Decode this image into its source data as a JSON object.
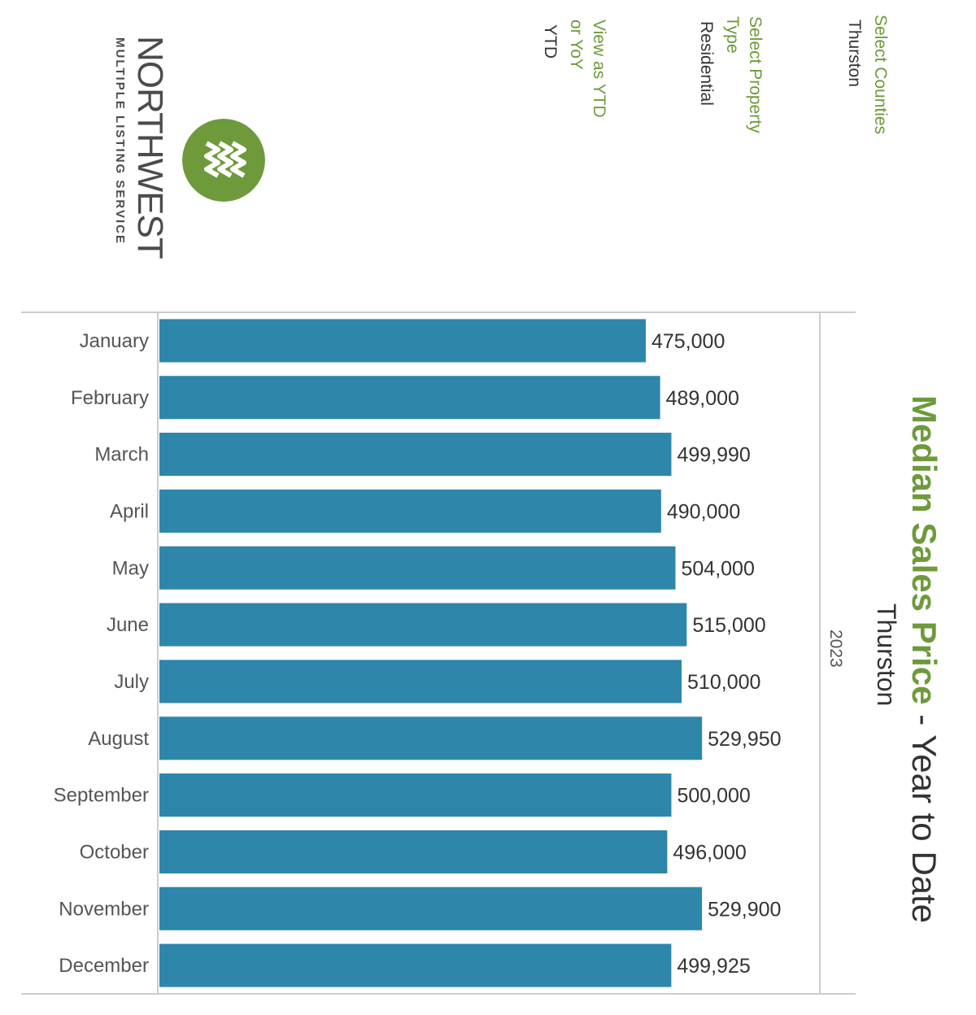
{
  "brand": {
    "wordmark": "NORTHWEST",
    "tagline": "MULTIPLE LISTING SERVICE",
    "logo_color": "#6e9a3c"
  },
  "filters": {
    "counties": {
      "label": "Select Counties",
      "value": "Thurston"
    },
    "property_type": {
      "label": "Select Property Type",
      "value": "Residential"
    },
    "view_as": {
      "label": "View as YTD or YoY",
      "value": "YTD"
    }
  },
  "title": {
    "accent": "Median Sales Price",
    "rest": " - Year to Date",
    "county": "Thurston"
  },
  "colors": {
    "bar": "#2e86ab",
    "accent": "#6e9a3c",
    "text": "#555555",
    "rule": "#cccccc"
  },
  "chart_data": {
    "type": "bar",
    "orientation": "horizontal",
    "column_header": "2023",
    "categories": [
      "January",
      "February",
      "March",
      "April",
      "May",
      "June",
      "July",
      "August",
      "September",
      "October",
      "November",
      "December"
    ],
    "values": [
      475000,
      489000,
      499990,
      490000,
      504000,
      515000,
      510000,
      529950,
      500000,
      496000,
      529900,
      499925
    ],
    "value_labels": [
      "475,000",
      "489,000",
      "499,990",
      "490,000",
      "504,000",
      "515,000",
      "510,000",
      "529,950",
      "500,000",
      "496,000",
      "529,900",
      "499,925"
    ],
    "xlim": [
      0,
      645000
    ]
  }
}
